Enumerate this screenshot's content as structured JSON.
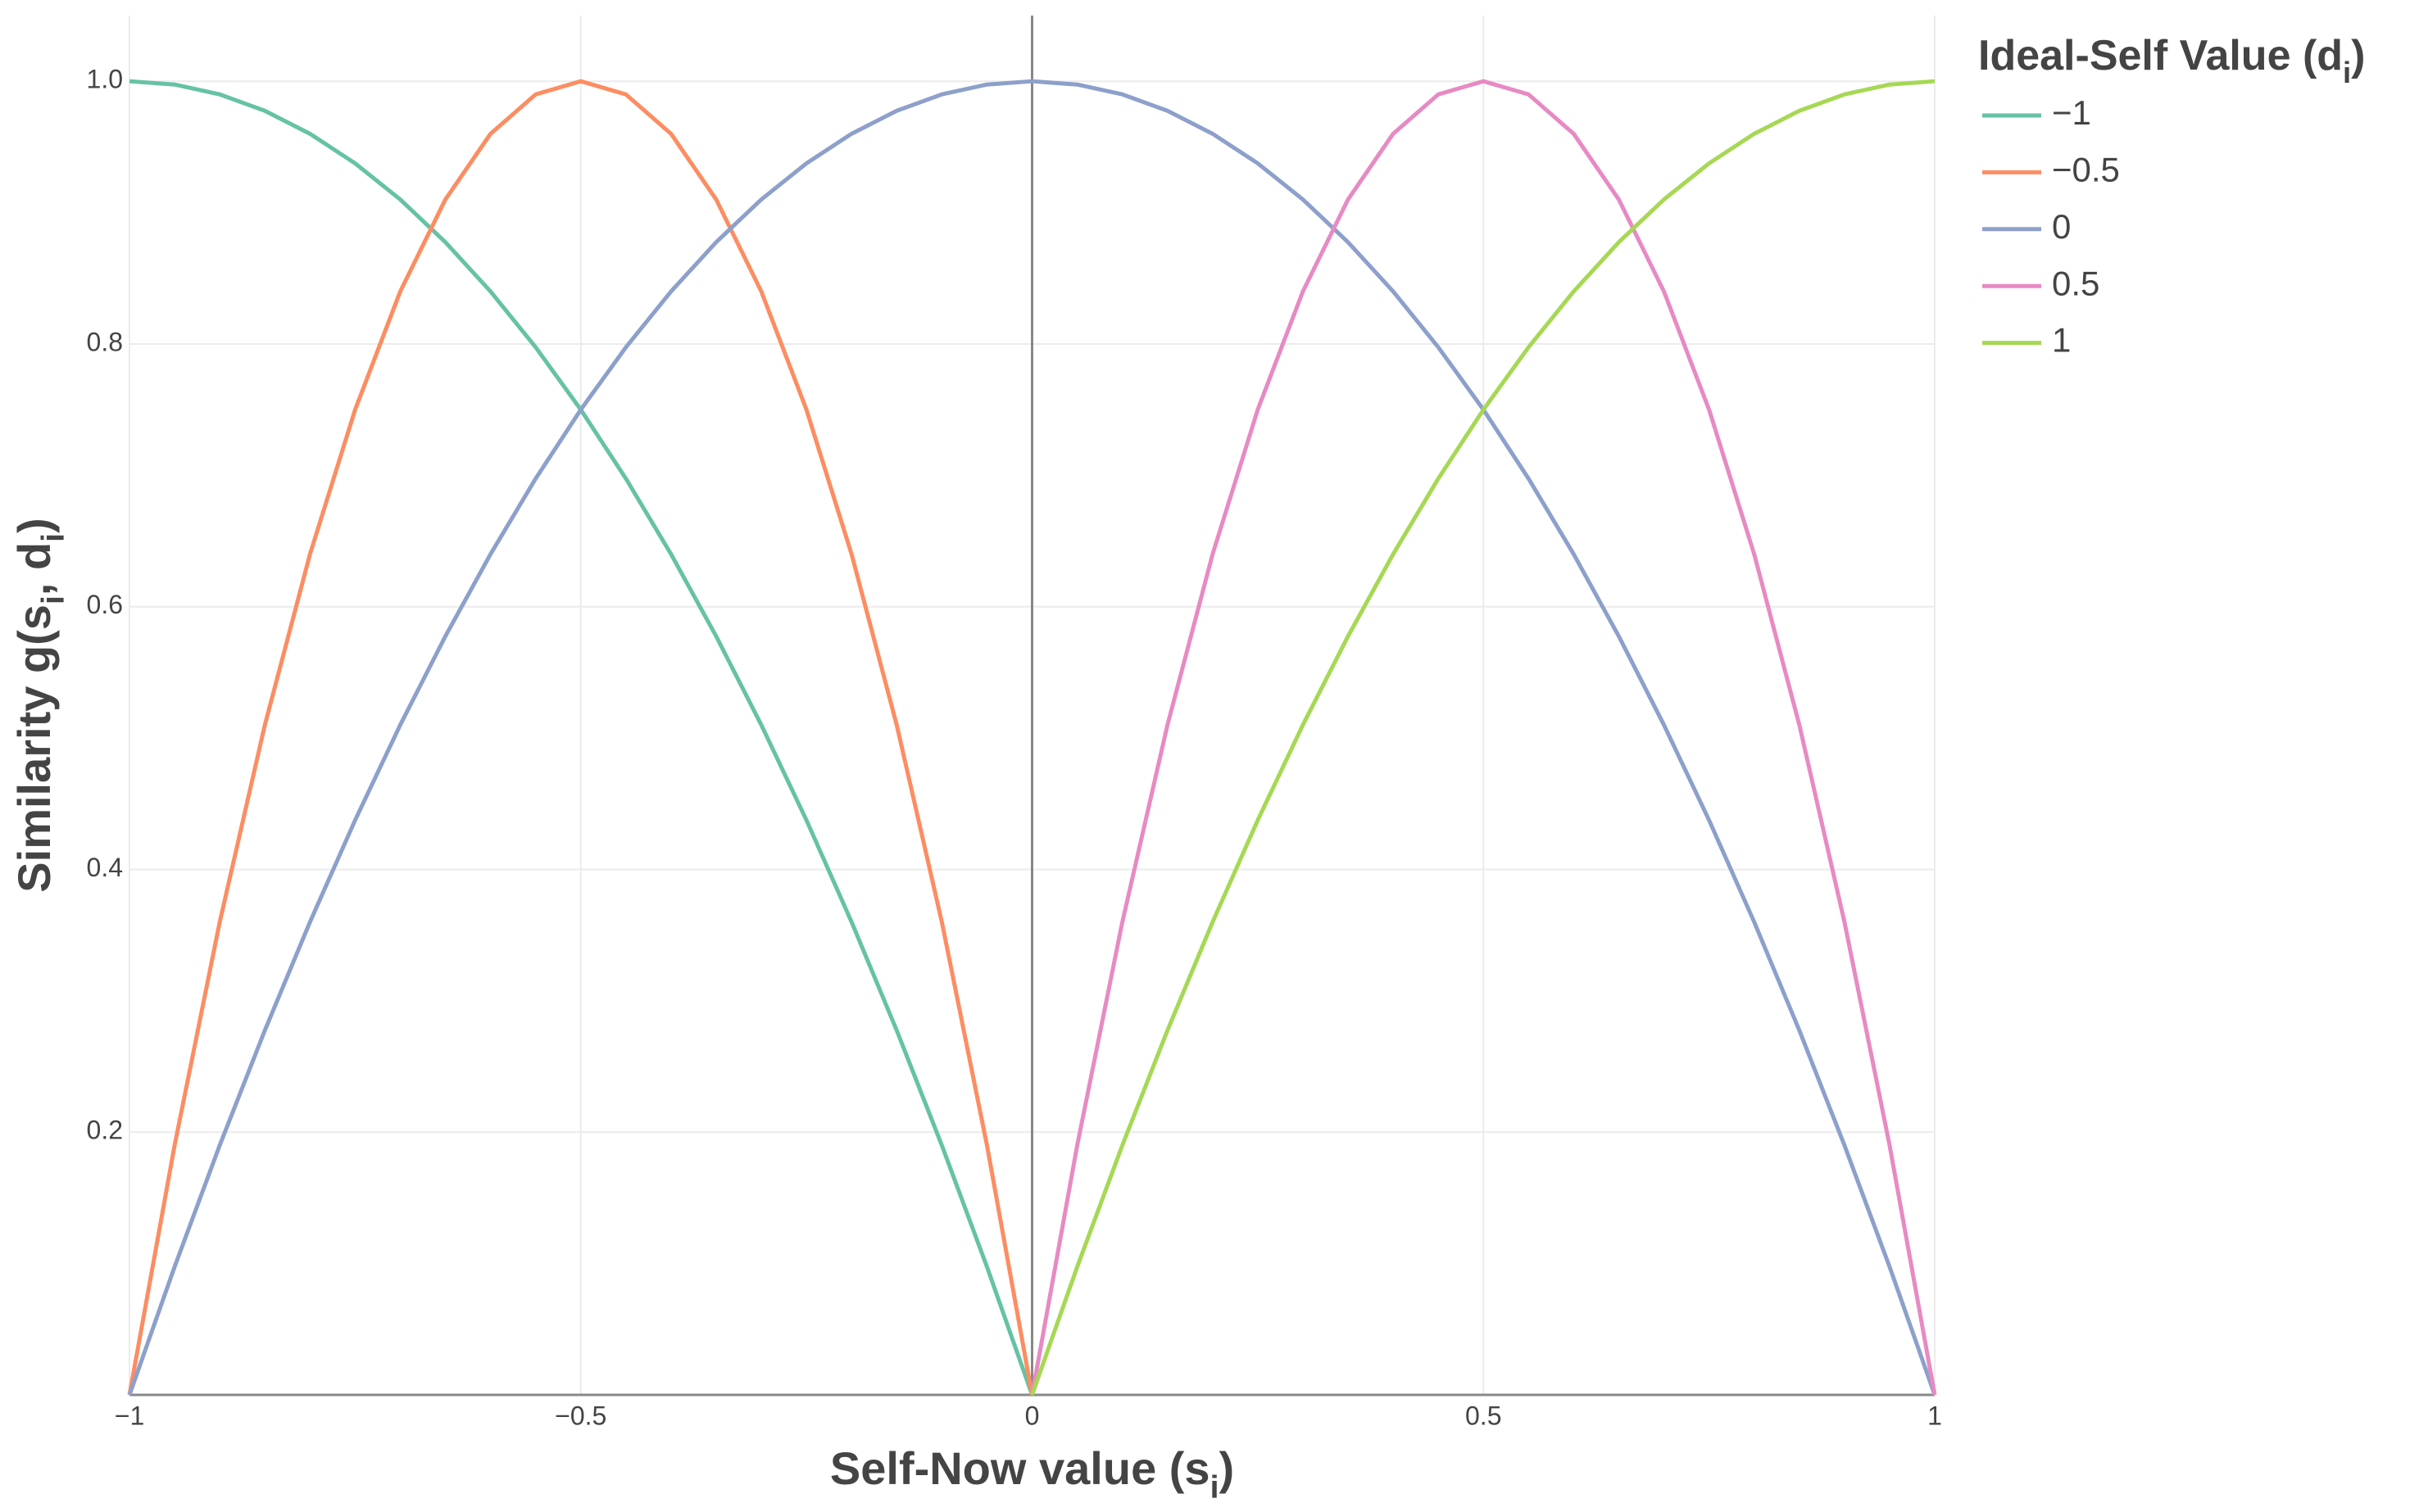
{
  "chart_data": {
    "type": "line",
    "x_title": [
      "Self-Now value (s",
      "i",
      ")"
    ],
    "y_title": [
      "Similarity g(s",
      "i",
      ", d",
      "i",
      ")"
    ],
    "legend_title": [
      "Ideal-Self Value (d",
      "i",
      ")"
    ],
    "legend_position": "top-right-outside",
    "grid": true,
    "zeroline": true,
    "xlim": [
      -1,
      1
    ],
    "ylim": [
      0,
      1.05
    ],
    "xticks": [
      {
        "value": -1,
        "label": "−1"
      },
      {
        "value": -0.5,
        "label": "−0.5"
      },
      0,
      0.5,
      1
    ],
    "yticks": [
      0.2,
      0.4,
      0.6,
      0.8,
      {
        "value": 1,
        "label": "1.0"
      }
    ],
    "x": [
      -1,
      -0.95,
      -0.9,
      -0.85,
      -0.8,
      -0.75,
      -0.7,
      -0.65,
      -0.6,
      -0.55,
      -0.5,
      -0.45,
      -0.4,
      -0.35,
      -0.3,
      -0.25,
      -0.2,
      -0.15,
      -0.1,
      -0.05,
      0,
      0.05,
      0.1,
      0.15,
      0.2,
      0.25,
      0.3,
      0.35,
      0.4,
      0.45,
      0.5,
      0.55,
      0.6,
      0.65,
      0.7,
      0.75,
      0.8,
      0.85,
      0.9,
      0.95,
      1
    ],
    "series": [
      {
        "name": "−1",
        "color": "#66c2a5",
        "values": [
          1,
          0.9975,
          0.99,
          0.9775,
          0.96,
          0.9375,
          0.91,
          0.8775,
          0.84,
          0.7975,
          0.75,
          0.6975,
          0.64,
          0.5775,
          0.51,
          0.4375,
          0.36,
          0.2775,
          0.19,
          0.0975,
          0,
          null,
          null,
          null,
          null,
          null,
          null,
          null,
          null,
          null,
          null,
          null,
          null,
          null,
          null,
          null,
          null,
          null,
          null,
          null,
          null
        ]
      },
      {
        "name": "−0.5",
        "color": "#fc8d62",
        "values": [
          0,
          0.19,
          0.36,
          0.51,
          0.64,
          0.75,
          0.84,
          0.91,
          0.96,
          0.99,
          1,
          0.99,
          0.96,
          0.91,
          0.84,
          0.75,
          0.64,
          0.51,
          0.36,
          0.19,
          0,
          null,
          null,
          null,
          null,
          null,
          null,
          null,
          null,
          null,
          null,
          null,
          null,
          null,
          null,
          null,
          null,
          null,
          null,
          null,
          null
        ]
      },
      {
        "name": "0",
        "color": "#8da0cb",
        "values": [
          0,
          0.0975,
          0.19,
          0.2775,
          0.36,
          0.4375,
          0.51,
          0.5775,
          0.64,
          0.6975,
          0.75,
          0.7975,
          0.84,
          0.8775,
          0.91,
          0.9375,
          0.96,
          0.9775,
          0.99,
          0.9975,
          1,
          0.9975,
          0.99,
          0.9775,
          0.96,
          0.9375,
          0.91,
          0.8775,
          0.84,
          0.7975,
          0.75,
          0.6975,
          0.64,
          0.5775,
          0.51,
          0.4375,
          0.36,
          0.2775,
          0.19,
          0.0975,
          0
        ]
      },
      {
        "name": "0.5",
        "color": "#e78ac3",
        "values": [
          null,
          null,
          null,
          null,
          null,
          null,
          null,
          null,
          null,
          null,
          null,
          null,
          null,
          null,
          null,
          null,
          null,
          null,
          null,
          null,
          0,
          0.19,
          0.36,
          0.51,
          0.64,
          0.75,
          0.84,
          0.91,
          0.96,
          0.99,
          1,
          0.99,
          0.96,
          0.91,
          0.84,
          0.75,
          0.64,
          0.51,
          0.36,
          0.19,
          0
        ]
      },
      {
        "name": "1",
        "color": "#a6d854",
        "values": [
          null,
          null,
          null,
          null,
          null,
          null,
          null,
          null,
          null,
          null,
          null,
          null,
          null,
          null,
          null,
          null,
          null,
          null,
          null,
          null,
          0,
          0.0975,
          0.19,
          0.2775,
          0.36,
          0.4375,
          0.51,
          0.5775,
          0.64,
          0.6975,
          0.75,
          0.7975,
          0.84,
          0.8775,
          0.91,
          0.9375,
          0.96,
          0.9775,
          0.99,
          0.9975,
          1
        ]
      }
    ]
  }
}
